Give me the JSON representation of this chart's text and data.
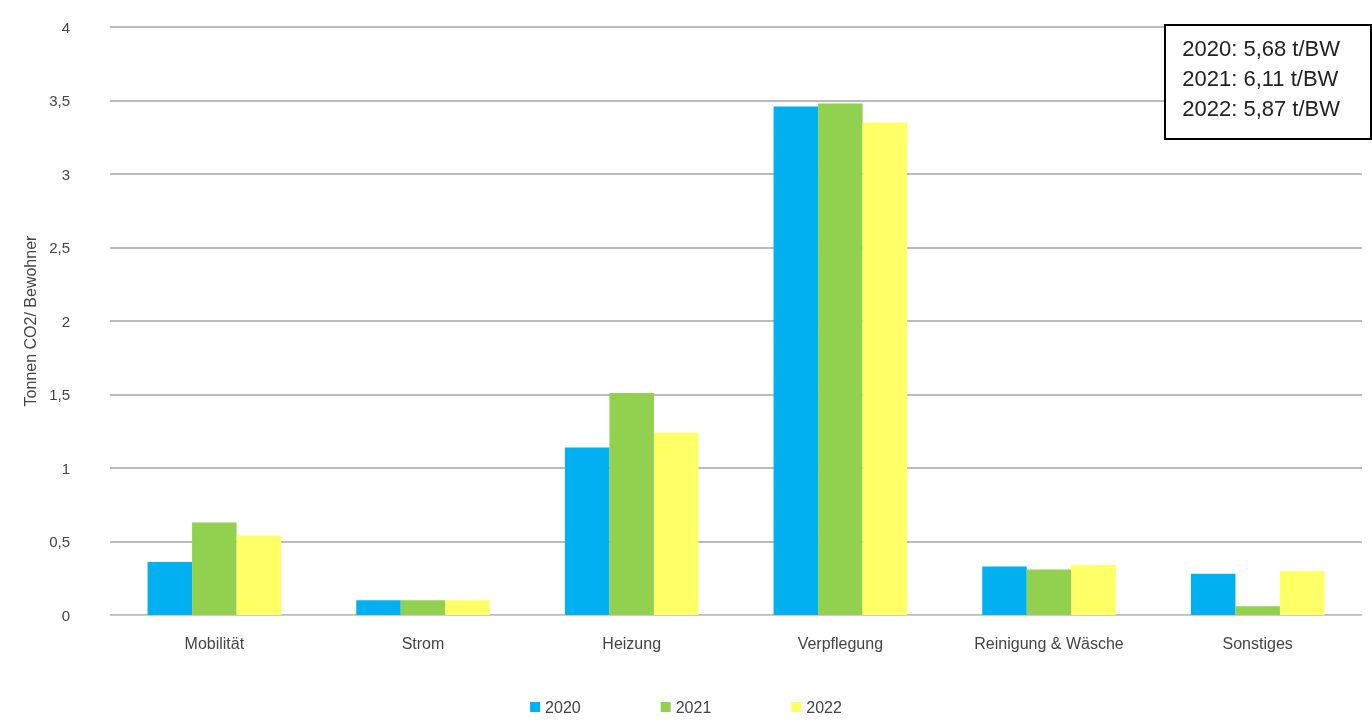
{
  "chart_data": {
    "type": "bar",
    "ylabel": "Tonnen CO2/ Bewohner",
    "categories": [
      "Mobilität",
      "Strom",
      "Heizung",
      "Verpflegung",
      "Reinigung & Wäsche",
      "Sonstiges"
    ],
    "series": [
      {
        "name": "2020",
        "color": "#00b0f0",
        "values": [
          0.36,
          0.1,
          1.14,
          3.46,
          0.33,
          0.28
        ]
      },
      {
        "name": "2021",
        "color": "#92d050",
        "values": [
          0.63,
          0.1,
          1.51,
          3.48,
          0.31,
          0.06
        ]
      },
      {
        "name": "2022",
        "color": "#ffff66",
        "values": [
          0.54,
          0.1,
          1.24,
          3.35,
          0.34,
          0.3
        ]
      }
    ],
    "ylim": [
      0,
      4
    ],
    "yticks": [
      0,
      {
        "value": 0.5,
        "label": "0,5"
      },
      1,
      {
        "value": 1.5,
        "label": "1,5"
      },
      2,
      {
        "value": 2.5,
        "label": "2,5"
      },
      3,
      {
        "value": 3.5,
        "label": "3,5"
      },
      4
    ],
    "grid": "y",
    "legend": "bottom",
    "annotations": [
      "2020: 5,68 t/BW",
      "2021: 6,11 t/BW",
      "2022: 5,87 t/BW"
    ]
  }
}
